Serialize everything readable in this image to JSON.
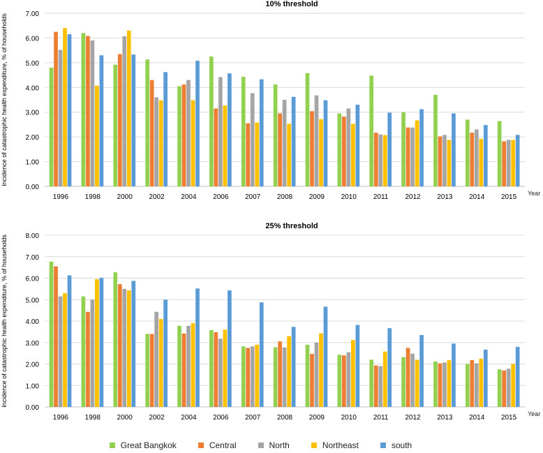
{
  "colors": {
    "Great Bangkok": "#92d050",
    "Central": "#ed7d31",
    "North": "#a5a5a5",
    "Northeast": "#ffc000",
    "south": "#5b9bd5"
  },
  "legend_labels": [
    "Great Bangkok",
    "Central",
    "North",
    "Northeast",
    "south"
  ],
  "chart_data": [
    {
      "type": "bar",
      "title": "10% threshold",
      "ylabel": "Incidence of catastrophic health expenditure, % of households",
      "xlabel": "Year",
      "ylim": [
        0,
        7
      ],
      "yticks": [
        "0.00",
        "1.00",
        "2.00",
        "3.00",
        "4.00",
        "5.00",
        "6.00",
        "7.00"
      ],
      "categories": [
        "1996",
        "1998",
        "2000",
        "2002",
        "2004",
        "2006",
        "2007",
        "2008",
        "2009",
        "2010",
        "2011",
        "2012",
        "2013",
        "2014",
        "2015"
      ],
      "series": [
        {
          "name": "Great Bangkok",
          "values": [
            4.8,
            6.2,
            4.92,
            5.13,
            4.05,
            5.25,
            4.43,
            4.12,
            4.58,
            2.95,
            4.48,
            3.0,
            3.7,
            2.7,
            2.64
          ]
        },
        {
          "name": "Central",
          "values": [
            6.25,
            6.08,
            5.35,
            4.3,
            4.12,
            3.15,
            2.55,
            2.95,
            3.04,
            2.82,
            2.17,
            2.38,
            2.02,
            2.17,
            1.82
          ]
        },
        {
          "name": "North",
          "values": [
            5.52,
            5.9,
            6.07,
            3.6,
            4.3,
            4.42,
            3.77,
            3.5,
            3.68,
            3.15,
            2.1,
            2.38,
            2.08,
            2.3,
            1.88
          ]
        },
        {
          "name": "Northeast",
          "values": [
            6.4,
            4.07,
            6.3,
            3.48,
            3.48,
            3.27,
            2.58,
            2.53,
            2.72,
            2.53,
            2.07,
            2.67,
            1.88,
            1.92,
            1.88
          ]
        },
        {
          "name": "south",
          "values": [
            6.15,
            5.3,
            5.33,
            4.62,
            5.08,
            4.57,
            4.33,
            3.62,
            3.48,
            3.3,
            2.98,
            3.12,
            2.95,
            2.48,
            2.08
          ]
        }
      ]
    },
    {
      "type": "bar",
      "title": "25% threshold",
      "ylabel": "Incidence of catastrophic health expenditure, % of households",
      "xlabel": "Year",
      "ylim": [
        0,
        8
      ],
      "yticks": [
        "0.00",
        "1.00",
        "2.00",
        "3.00",
        "4.00",
        "5.00",
        "6.00",
        "7.00",
        "8.00"
      ],
      "categories": [
        "1996",
        "1998",
        "2000",
        "2002",
        "2004",
        "2006",
        "2007",
        "2008",
        "2009",
        "2010",
        "2011",
        "2012",
        "2013",
        "2014",
        "2015"
      ],
      "series": [
        {
          "name": "Great Bangkok",
          "values": [
            6.77,
            5.15,
            6.27,
            3.4,
            3.78,
            3.58,
            2.82,
            2.78,
            2.9,
            2.43,
            2.2,
            2.32,
            2.12,
            2.0,
            1.75
          ]
        },
        {
          "name": "Central",
          "values": [
            6.55,
            4.43,
            5.72,
            3.4,
            3.42,
            3.48,
            2.75,
            3.05,
            2.47,
            2.4,
            1.93,
            2.75,
            2.03,
            2.18,
            1.7
          ]
        },
        {
          "name": "North",
          "values": [
            5.15,
            5.0,
            5.5,
            4.43,
            3.78,
            3.18,
            2.82,
            2.77,
            3.0,
            2.55,
            1.9,
            2.48,
            2.07,
            2.03,
            1.78
          ]
        },
        {
          "name": "Northeast",
          "values": [
            5.3,
            5.95,
            5.43,
            4.1,
            3.9,
            3.6,
            2.9,
            3.3,
            3.43,
            3.12,
            2.58,
            2.2,
            2.18,
            2.25,
            2.0
          ]
        },
        {
          "name": "south",
          "values": [
            6.13,
            6.02,
            5.87,
            5.0,
            5.52,
            5.43,
            4.87,
            3.73,
            4.67,
            3.82,
            3.67,
            3.35,
            2.95,
            2.67,
            2.8
          ]
        }
      ]
    }
  ]
}
